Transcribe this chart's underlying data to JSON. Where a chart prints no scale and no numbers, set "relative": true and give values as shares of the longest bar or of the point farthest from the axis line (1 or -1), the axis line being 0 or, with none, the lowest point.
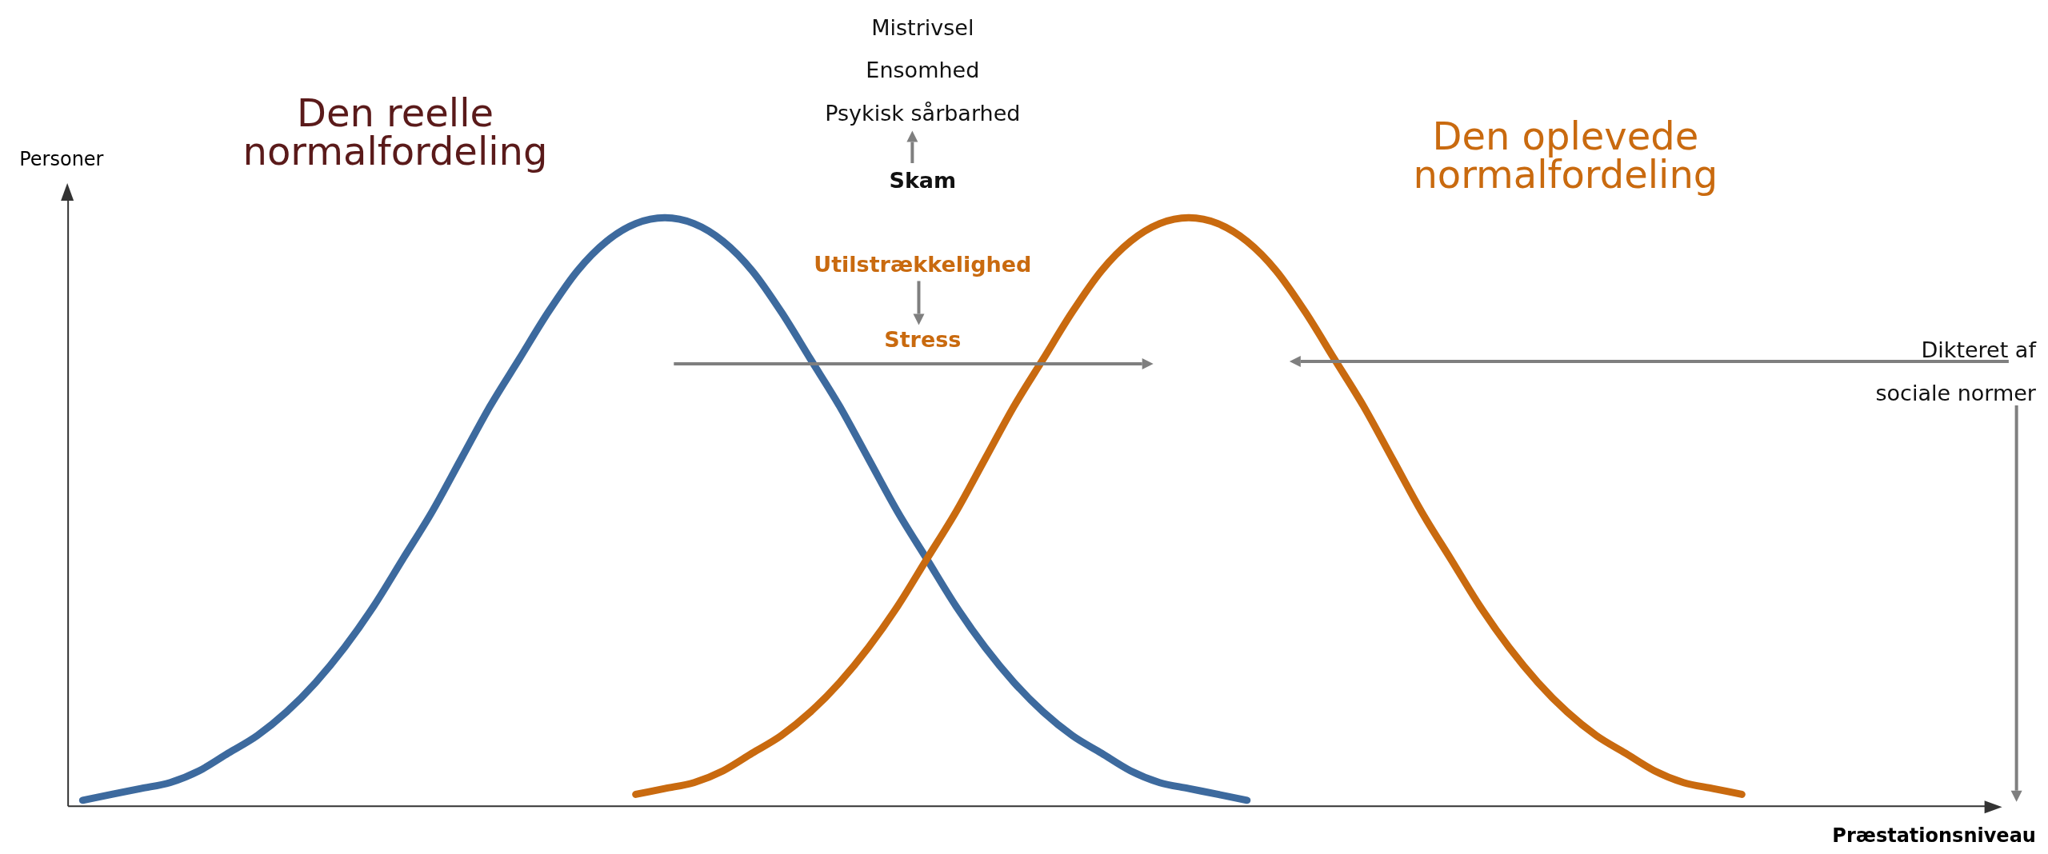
{
  "chart_data": {
    "type": "line",
    "relative": true,
    "ylabel": "Personer",
    "xlabel": "Præstationsniveau",
    "legend": false,
    "grid": false,
    "marker": "none",
    "line_style": "solid",
    "categories": [
      null,
      null,
      null,
      null,
      null,
      null,
      null,
      null,
      null,
      null,
      null,
      null,
      null,
      null,
      null,
      null,
      null,
      null,
      null,
      null,
      null,
      null,
      null,
      null,
      null,
      null,
      null,
      null,
      null,
      null,
      null,
      null,
      null,
      null,
      null,
      null,
      null,
      null,
      null,
      null,
      null,
      null,
      null,
      null,
      null,
      null,
      null,
      null,
      null,
      null,
      null,
      null,
      null,
      null,
      null,
      null,
      null,
      null,
      null,
      null,
      null,
      null,
      null,
      null,
      null,
      null
    ],
    "series": [
      {
        "name": "Den reelle normalfordeling",
        "color": "#3d6a9e",
        "values": [
          null,
          0.01,
          0.02,
          0.03,
          0.04,
          0.06,
          0.09,
          0.12,
          0.16,
          0.21,
          0.27,
          0.34,
          0.42,
          0.5,
          0.59,
          0.68,
          0.76,
          0.84,
          0.91,
          0.96,
          0.99,
          1,
          0.99,
          0.96,
          0.91,
          0.84,
          0.76,
          0.68,
          0.59,
          0.5,
          0.42,
          0.34,
          0.27,
          0.21,
          0.16,
          0.12,
          0.09,
          0.06,
          0.04,
          0.03,
          0.02,
          0.01,
          null,
          null,
          null,
          null,
          null,
          null,
          null,
          null,
          null,
          null,
          null,
          null,
          null,
          null,
          null,
          null,
          null,
          null,
          null,
          null,
          null,
          null,
          null,
          null
        ]
      },
      {
        "name": "Den oplevede normalfordeling",
        "color": "#c96a0f",
        "values": [
          null,
          null,
          null,
          null,
          null,
          null,
          null,
          null,
          null,
          null,
          null,
          null,
          null,
          null,
          null,
          null,
          null,
          null,
          null,
          null,
          0.02,
          0.03,
          0.04,
          0.06,
          0.09,
          0.12,
          0.16,
          0.21,
          0.27,
          0.34,
          0.42,
          0.5,
          0.59,
          0.68,
          0.76,
          0.84,
          0.91,
          0.96,
          0.99,
          1,
          0.99,
          0.96,
          0.91,
          0.84,
          0.76,
          0.68,
          0.59,
          0.5,
          0.42,
          0.34,
          0.27,
          0.21,
          0.16,
          0.12,
          0.09,
          0.06,
          0.04,
          0.03,
          0.02,
          null,
          null,
          null,
          null,
          null,
          null,
          null
        ]
      }
    ],
    "annotations": [
      "Mistrivsel",
      "Ensomhed",
      "Psykisk sårbarhed",
      "Skam",
      "Utilstrækkelighed",
      "Stress",
      "Dikteret af",
      "sociale normer"
    ]
  }
}
